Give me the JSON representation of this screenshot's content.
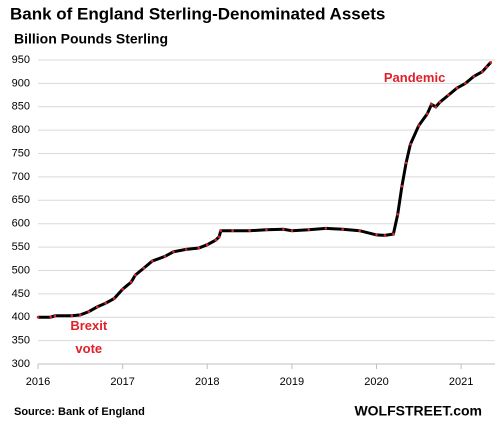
{
  "chart_data": {
    "type": "line",
    "title": "Bank of England Sterling-Denominated  Assets",
    "subtitle": "Billion Pounds Sterling",
    "source": "Source: Bank of England",
    "credit": "WOLFSTREET.com",
    "line_color": "#000000",
    "marker_color": "#e0202a",
    "annotation_color": "#e0202a",
    "annotations": [
      {
        "text": "Pandemic",
        "x": 2020.45,
        "y": 910
      },
      {
        "text": "Brexit",
        "x": 2016.6,
        "y": 380
      },
      {
        "text": "vote",
        "x": 2016.6,
        "y": 331
      }
    ],
    "x": [
      2016.0,
      2016.15,
      2016.2,
      2016.4,
      2016.5,
      2016.6,
      2016.7,
      2016.8,
      2016.9,
      2017.0,
      2017.1,
      2017.15,
      2017.25,
      2017.35,
      2017.5,
      2017.6,
      2017.75,
      2017.9,
      2018.0,
      2018.1,
      2018.14,
      2018.16,
      2018.3,
      2018.5,
      2018.7,
      2018.9,
      2019.0,
      2019.2,
      2019.4,
      2019.6,
      2019.8,
      2020.0,
      2020.1,
      2020.2,
      2020.25,
      2020.3,
      2020.35,
      2020.4,
      2020.5,
      2020.6,
      2020.65,
      2020.7,
      2020.75,
      2020.85,
      2020.95,
      2021.05,
      2021.15,
      2021.25,
      2021.3,
      2021.35
    ],
    "values": [
      400,
      400,
      403,
      403,
      405,
      412,
      422,
      430,
      440,
      460,
      475,
      490,
      505,
      520,
      530,
      540,
      545,
      548,
      555,
      565,
      572,
      585,
      585,
      585,
      587,
      588,
      585,
      587,
      590,
      588,
      585,
      576,
      575,
      578,
      620,
      680,
      730,
      770,
      810,
      835,
      855,
      850,
      860,
      875,
      890,
      900,
      915,
      925,
      935,
      945
    ],
    "xlim": [
      2016,
      2021.4
    ],
    "xticks": [
      2016,
      2017,
      2018,
      2019,
      2020,
      2021
    ],
    "ylim": [
      300,
      950
    ],
    "yticks": [
      300,
      350,
      400,
      450,
      500,
      550,
      600,
      650,
      700,
      750,
      800,
      850,
      900,
      950
    ],
    "grid": true
  }
}
